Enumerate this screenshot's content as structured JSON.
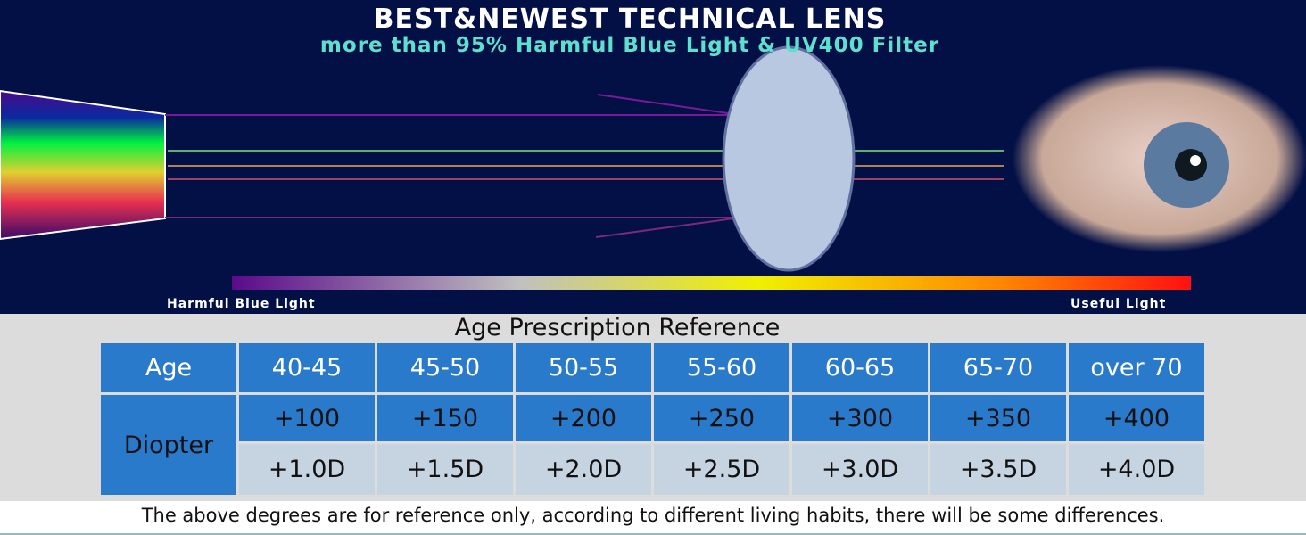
{
  "header": {
    "title": "BEST&NEWEST TECHNICAL LENS",
    "subtitle": "more than 95% Harmful Blue Light & UV400 Filter"
  },
  "spectrum": {
    "left_label": "Harmful Blue Light",
    "right_label": "Useful Light"
  },
  "table": {
    "title": "Age Prescription Reference",
    "row_header_age": "Age",
    "row_header_diopter": "Diopter",
    "ages": [
      "40-45",
      "45-50",
      "50-55",
      "55-60",
      "60-65",
      "65-70",
      "over 70"
    ],
    "degrees": [
      "+100",
      "+150",
      "+200",
      "+250",
      "+300",
      "+350",
      "+400"
    ],
    "diopters": [
      "+1.0D",
      "+1.5D",
      "+2.0D",
      "+2.5D",
      "+3.0D",
      "+3.5D",
      "+4.0D"
    ]
  },
  "footer": {
    "note": "The above degrees are for reference only, according to different living habits, there will be some differences."
  },
  "colors": {
    "background": "#031045",
    "table_header": "#2a7acb",
    "table_light": "#c6d3e1",
    "subtitle": "#5ee0d0"
  }
}
